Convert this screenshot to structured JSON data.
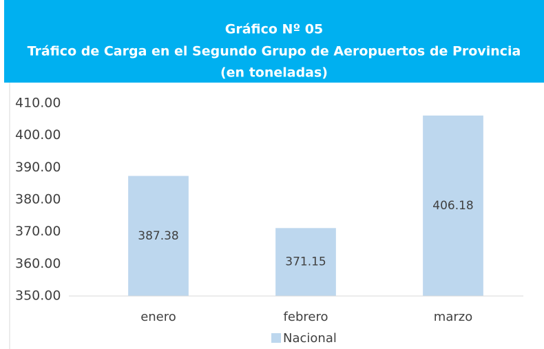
{
  "chart_data": {
    "type": "bar",
    "title": "Gráfico Nº 05",
    "subtitle": "Tráfico de Carga en el Segundo Grupo de Aeropuertos de Provincia",
    "unit_note": "(en toneladas)",
    "categories": [
      "enero",
      "febrero",
      "marzo"
    ],
    "series": [
      {
        "name": "Nacional",
        "color": "#bdd7ee",
        "values": [
          387.38,
          371.15,
          406.18
        ]
      }
    ],
    "ylim": [
      350,
      410
    ],
    "yticks": [
      {
        "value": 350,
        "label": "350.00"
      },
      {
        "value": 360,
        "label": "360.00"
      },
      {
        "value": 370,
        "label": "370.00"
      },
      {
        "value": 380,
        "label": "380.00"
      },
      {
        "value": 390,
        "label": "390.00"
      },
      {
        "value": 400,
        "label": "400.00"
      },
      {
        "value": 410,
        "label": "410.00"
      }
    ],
    "grid": false,
    "legend": "bottom"
  }
}
